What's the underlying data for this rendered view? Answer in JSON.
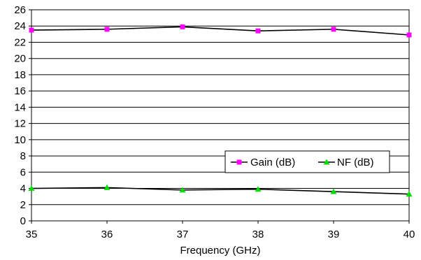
{
  "chart_data": {
    "type": "line",
    "title": "",
    "xlabel": "Frequency (GHz)",
    "ylabel": "",
    "x": [
      35,
      36,
      37,
      38,
      39,
      40
    ],
    "xlim": [
      35,
      40
    ],
    "ylim": [
      0,
      26
    ],
    "xticks": [
      "35",
      "36",
      "37",
      "38",
      "39",
      "40"
    ],
    "yticks": [
      "0",
      "2",
      "4",
      "6",
      "8",
      "10",
      "12",
      "14",
      "16",
      "18",
      "20",
      "22",
      "24",
      "26"
    ],
    "grid": "horizontal",
    "legend_position": "lower-right",
    "series": [
      {
        "name": "Gain (dB)",
        "values": [
          23.5,
          23.6,
          23.9,
          23.4,
          23.6,
          22.9
        ],
        "marker": "square",
        "marker_color": "#ff00ff"
      },
      {
        "name": "NF (dB)",
        "values": [
          4.0,
          4.1,
          3.8,
          3.9,
          3.6,
          3.3
        ],
        "marker": "triangle",
        "marker_color": "#00dd00"
      }
    ]
  }
}
